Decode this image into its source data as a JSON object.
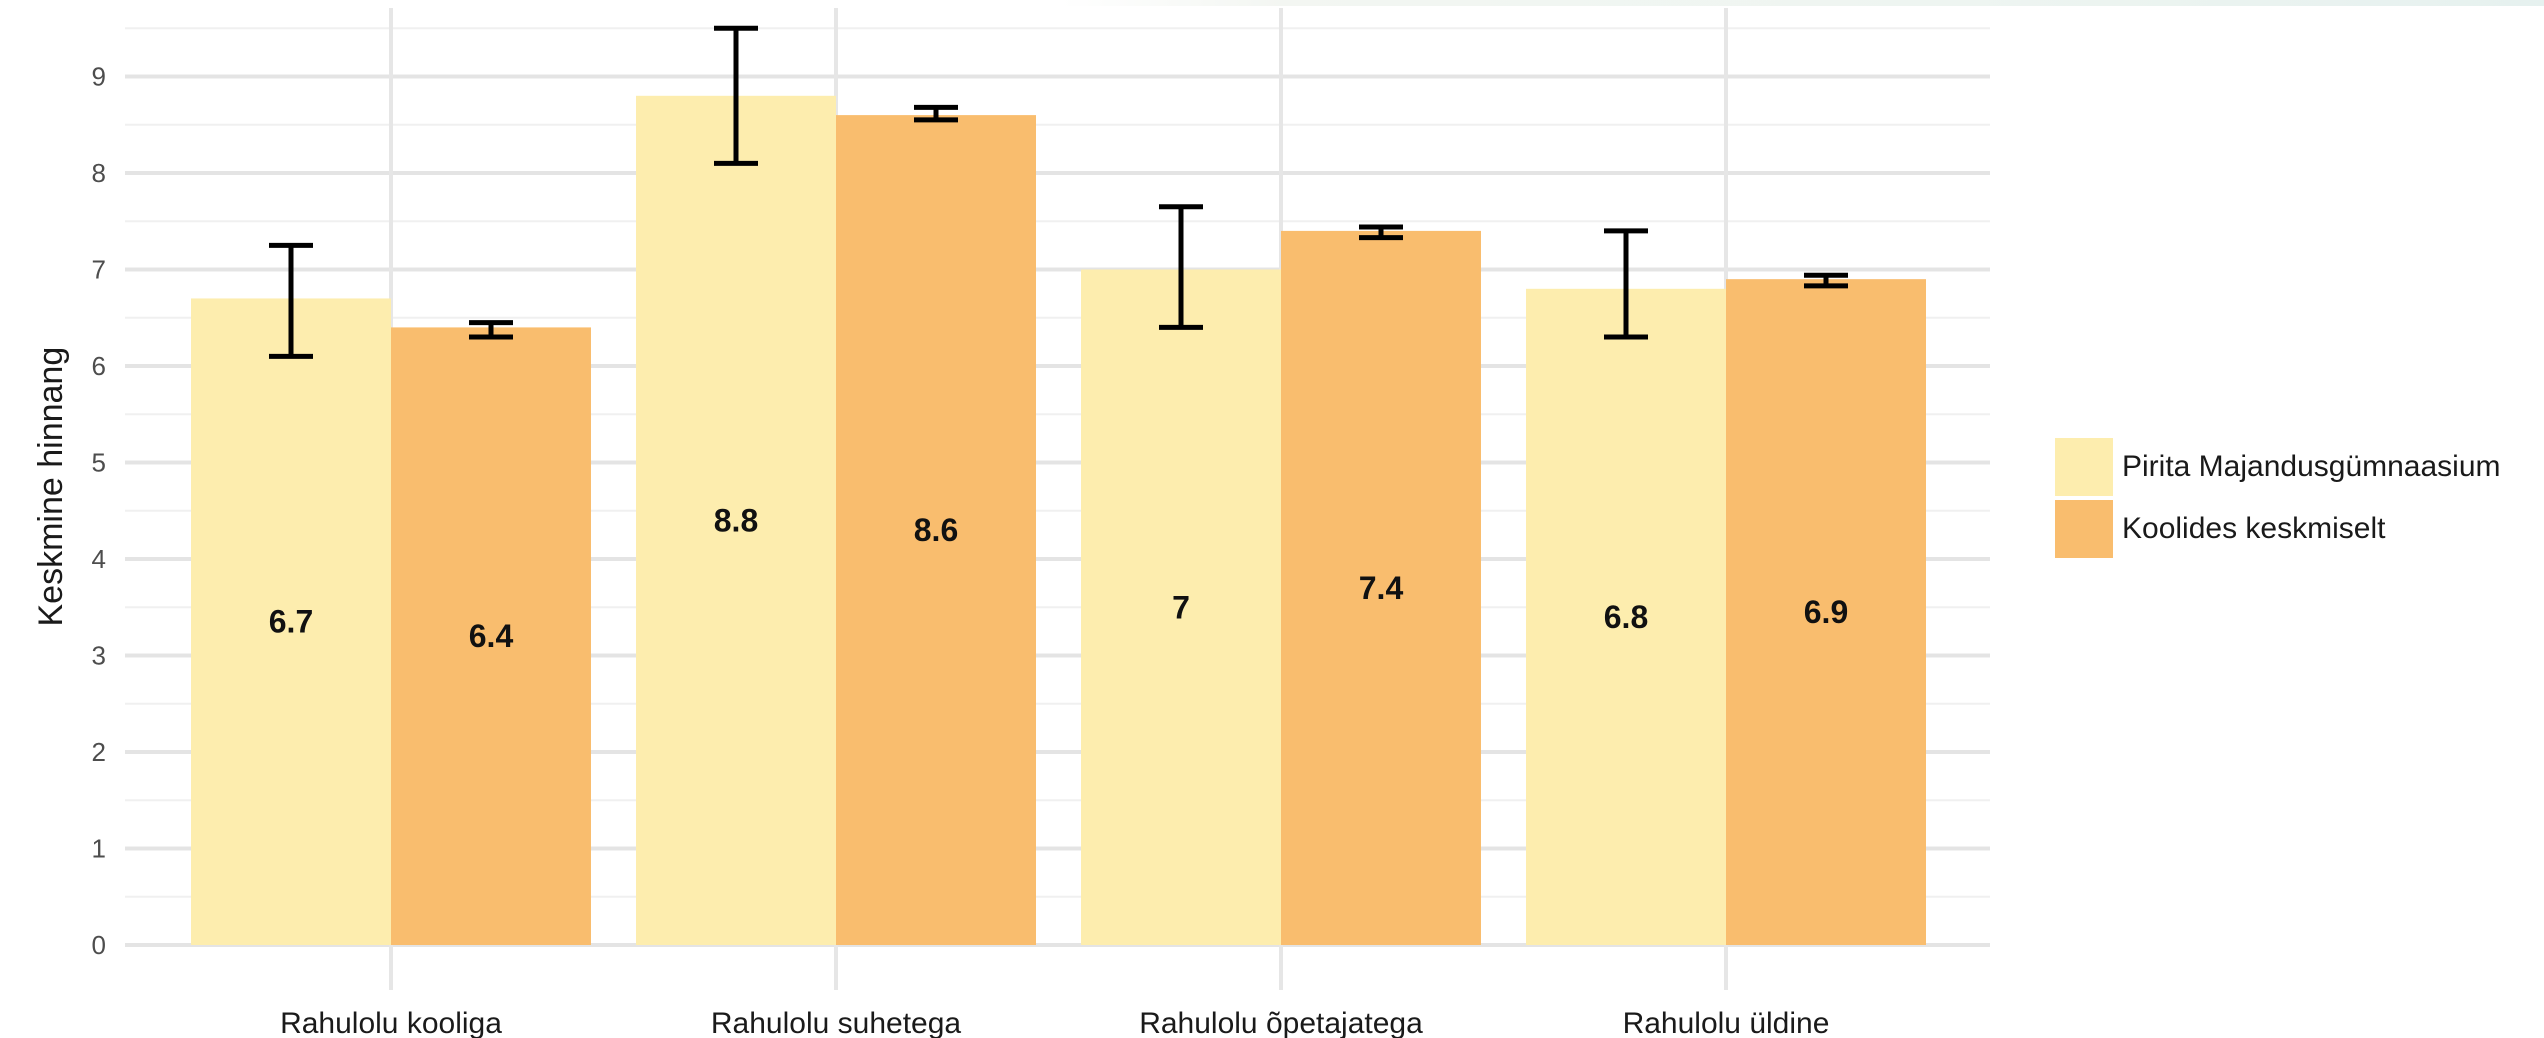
{
  "chart_data": {
    "type": "bar",
    "categories": [
      "Rahulolu kooliga",
      "Rahulolu suhetega",
      "Rahulolu õpetajatega",
      "Rahulolu üldine"
    ],
    "series": [
      {
        "name": "Pirita Majandusgümnaasium",
        "color": "#FDEDAE",
        "values": [
          6.7,
          8.8,
          7.0,
          6.8
        ],
        "labels": [
          "6.7",
          "8.8",
          "7",
          "6.8"
        ],
        "error_low": [
          6.1,
          8.1,
          6.4,
          6.3
        ],
        "error_high": [
          7.25,
          9.5,
          7.65,
          7.4
        ]
      },
      {
        "name": "Koolides keskmiselt",
        "color": "#F9BD6E",
        "values": [
          6.4,
          8.6,
          7.4,
          6.9
        ],
        "labels": [
          "6.4",
          "8.6",
          "7.4",
          "6.9"
        ],
        "error_low": [
          6.3,
          8.55,
          7.33,
          6.83
        ],
        "error_high": [
          6.45,
          8.68,
          7.44,
          6.94
        ]
      }
    ],
    "ylabel": "Keskmine hinnang",
    "xlabel": "",
    "ylim": [
      0,
      9.6
    ],
    "yticks": [
      "0",
      "1",
      "2",
      "3",
      "4",
      "5",
      "6",
      "7",
      "8",
      "9"
    ],
    "grid": true,
    "legend": "right"
  }
}
